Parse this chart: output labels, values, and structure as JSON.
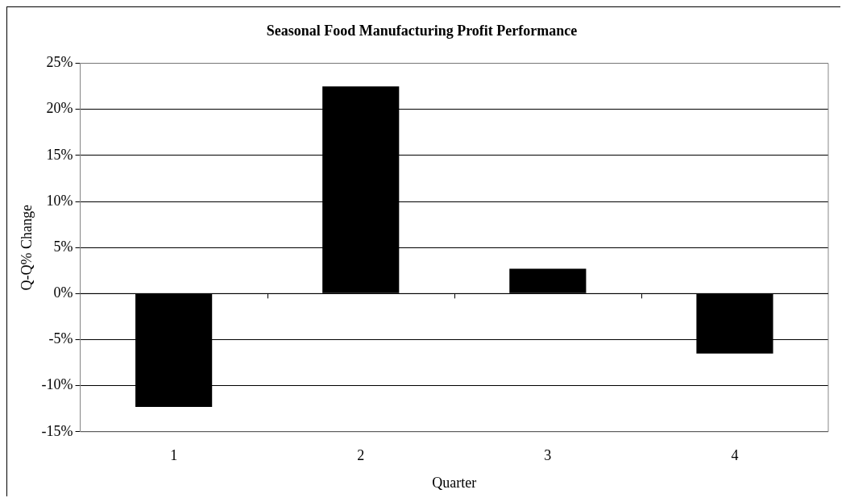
{
  "chart_data": {
    "type": "bar",
    "title": "Seasonal Food Manufacturing Profit Performance",
    "xlabel": "Quarter",
    "ylabel": "Q-Q% Change",
    "categories": [
      "1",
      "2",
      "3",
      "4"
    ],
    "values": [
      -12.3,
      22.5,
      2.7,
      -6.5
    ],
    "color": "#000000",
    "ylim": [
      -15,
      25
    ],
    "yticks": [
      {
        "value": -15,
        "label": "-15%"
      },
      {
        "value": -10,
        "label": "-10%"
      },
      {
        "value": -5,
        "label": "-5%"
      },
      {
        "value": 0,
        "label": "0%"
      },
      {
        "value": 5,
        "label": "5%"
      },
      {
        "value": 10,
        "label": "10%"
      },
      {
        "value": 15,
        "label": "15%"
      },
      {
        "value": 20,
        "label": "20%"
      },
      {
        "value": 25,
        "label": "25%"
      }
    ],
    "grid": "y"
  }
}
